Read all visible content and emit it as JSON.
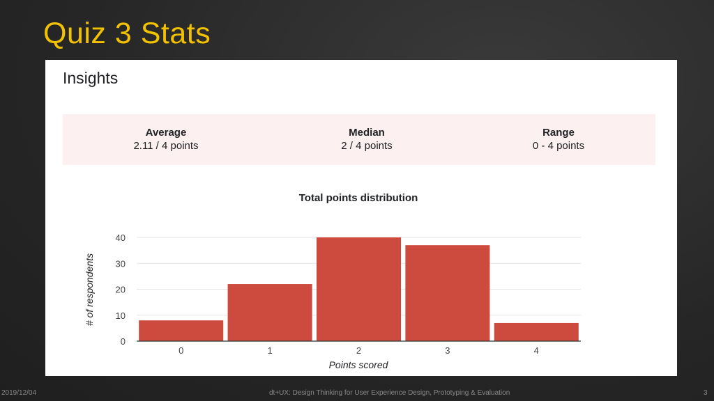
{
  "slide": {
    "title": "Quiz 3 Stats",
    "footer_date": "2019/12/04",
    "footer_course": "dt+UX: Design Thinking for User Experience Design, Prototyping & Evaluation",
    "page_number": "3"
  },
  "insights": {
    "heading": "Insights",
    "stats": [
      {
        "label": "Average",
        "value": "2.11 / 4 points"
      },
      {
        "label": "Median",
        "value": "2 / 4 points"
      },
      {
        "label": "Range",
        "value": "0 - 4 points"
      }
    ]
  },
  "chart_data": {
    "type": "bar",
    "title": "Total points distribution",
    "xlabel": "Points scored",
    "ylabel": "# of respondents",
    "categories": [
      "0",
      "1",
      "2",
      "3",
      "4"
    ],
    "values": [
      8,
      22,
      40,
      37,
      7
    ],
    "ylim": [
      0,
      40
    ],
    "yticks": [
      0,
      10,
      20,
      30,
      40
    ],
    "grid": true,
    "legend": "none",
    "bar_color": "#cc4a3e"
  },
  "colors": {
    "title": "#f2c200",
    "stats_background": "#fcf1f0"
  }
}
